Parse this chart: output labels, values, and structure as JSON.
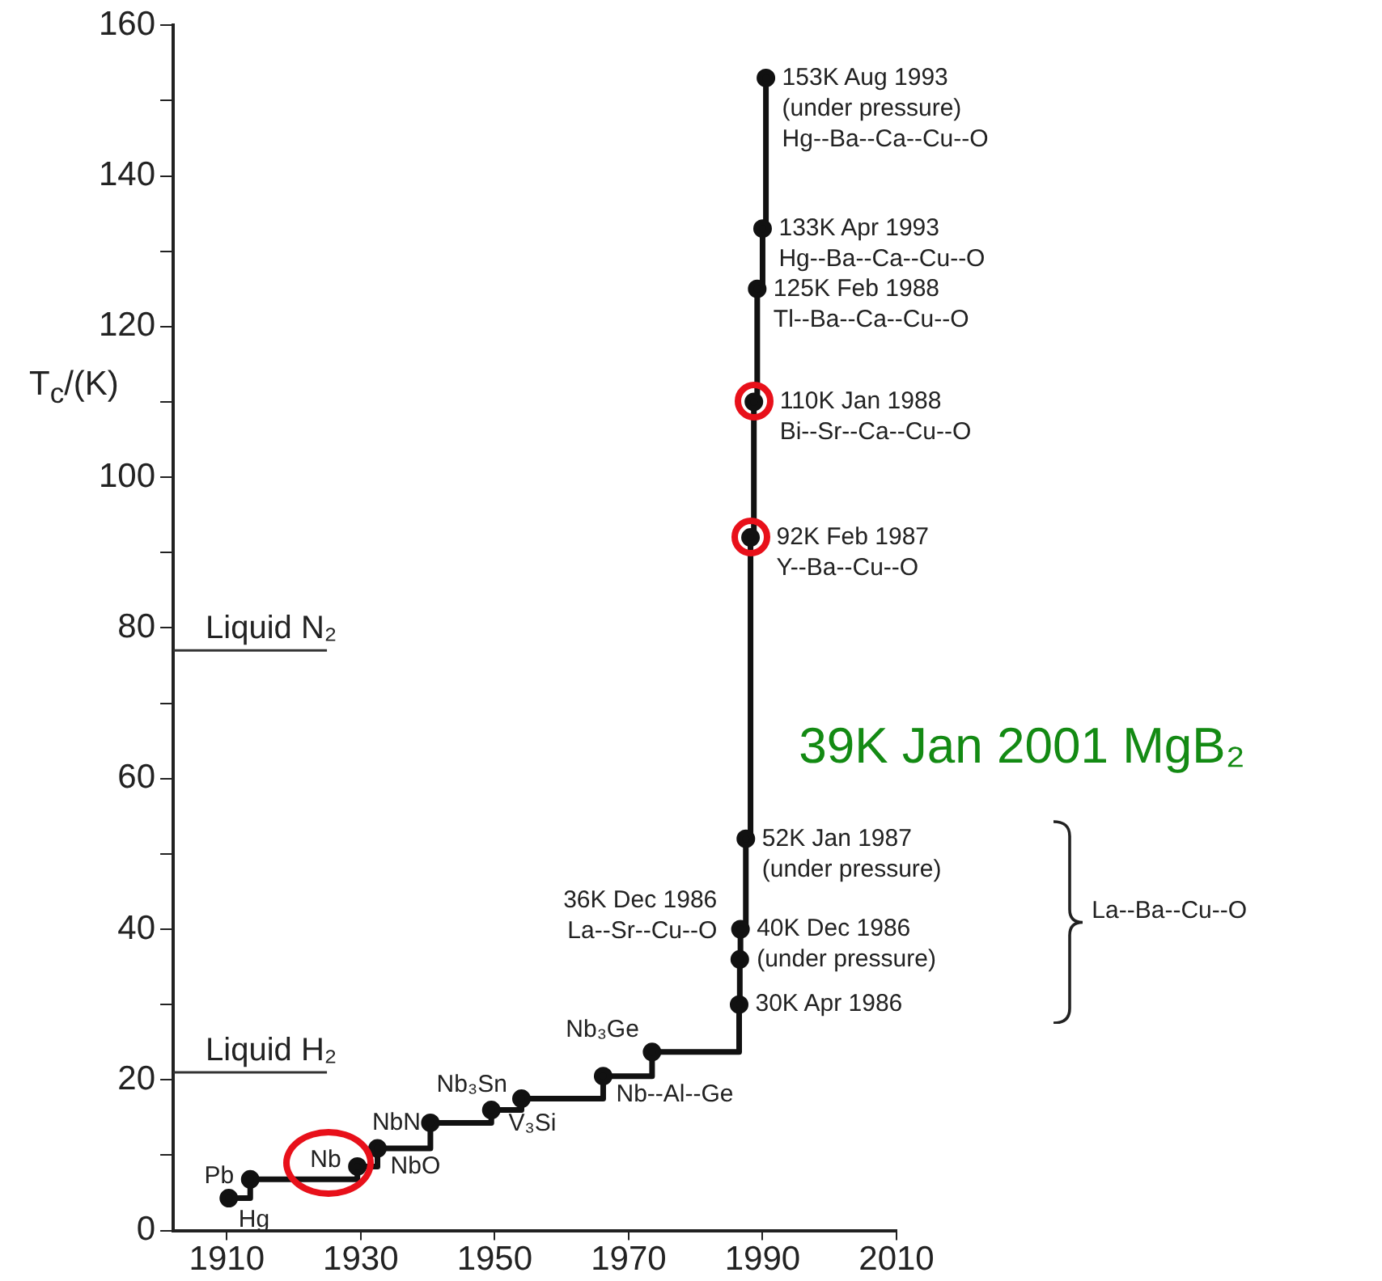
{
  "chart_data": {
    "type": "step",
    "ylabel": "T$_{c}$/(K)",
    "x": [
      1910.3,
      1913.5,
      1929.5,
      1932.5,
      1940.4,
      1949.5,
      1954,
      1966.2,
      1973.5,
      1986.5,
      1986.6,
      1986.7,
      1987.5,
      1988.2,
      1988.7,
      1989.2,
      1990,
      1990.5
    ],
    "values": [
      4.3,
      6.8,
      8.5,
      10.9,
      14.3,
      16,
      17.5,
      20.5,
      23.7,
      30,
      36,
      40,
      52,
      92,
      110,
      125,
      133,
      153
    ],
    "color": "#111111",
    "marker": "circle",
    "grid": false,
    "legend": false,
    "xlim": [
      1902,
      2010
    ],
    "xticks": [
      1910,
      1930,
      1950,
      1970,
      1990,
      2010
    ],
    "ylim": [
      0,
      160
    ],
    "yticks": [
      0,
      {
        "value": 10,
        "label": null
      },
      20,
      {
        "value": 30,
        "label": null
      },
      40,
      {
        "value": 50,
        "label": null
      },
      60,
      {
        "value": 70,
        "label": null
      },
      80,
      {
        "value": 90,
        "label": null
      },
      100,
      {
        "value": 110,
        "label": null
      },
      120,
      {
        "value": 130,
        "label": null
      },
      140,
      {
        "value": 150,
        "label": null
      },
      160
    ],
    "ref_lines": [
      {
        "axis": "y",
        "value": 77,
        "label": "Liquid N₂"
      },
      {
        "axis": "y",
        "value": 21,
        "label": "Liquid H₂"
      }
    ],
    "annotations": [
      {
        "text": "Pb",
        "x": 1913.5,
        "y": 6.8
      },
      {
        "text": "Hg",
        "x": 1910.3,
        "y": 4.3
      },
      {
        "text": "Nb",
        "x": 1929.5,
        "y": 8.5
      },
      {
        "text": "NbO",
        "x": 1932.5,
        "y": 10.9
      },
      {
        "text": "NbN",
        "x": 1940.4,
        "y": 14.3
      },
      {
        "text": "Nb₃Sn",
        "x": 1949.5,
        "y": 16
      },
      {
        "text": "V₃Si",
        "x": 1954,
        "y": 17.5
      },
      {
        "text": "Nb--Al--Ge",
        "x": 1966.2,
        "y": 20.5
      },
      {
        "text": "Nb₃Ge",
        "x": 1973.5,
        "y": 23.7
      },
      {
        "text": "36K Dec 1986\nLa--Sr--Cu--O",
        "x": 1986.6,
        "y": 36
      },
      {
        "text": "30K Apr 1986",
        "x": 1986.5,
        "y": 30
      },
      {
        "text": "40K Dec 1986\n(under pressure)",
        "x": 1986.7,
        "y": 40
      },
      {
        "text": "52K Jan 1987\n(under pressure)",
        "x": 1987.5,
        "y": 52
      },
      {
        "text": "92K Feb 1987\nY--Ba--Cu--O",
        "x": 1988.2,
        "y": 92
      },
      {
        "text": "110K Jan 1988\nBi--Sr--Ca--Cu--O",
        "x": 1988.7,
        "y": 110
      },
      {
        "text": "125K Feb 1988\nTl--Ba--Ca--Cu--O",
        "x": 1989.2,
        "y": 125
      },
      {
        "text": "133K Apr 1993\nHg--Ba--Ca--Cu--O",
        "x": 1990,
        "y": 133
      },
      {
        "text": "153K Aug 1993\n(under pressure)\nHg--Ba--Ca--Cu--O",
        "x": 1990.5,
        "y": 153
      },
      "La--Ba--Cu--O",
      "39K Jan 2001 MgB₂"
    ]
  }
}
